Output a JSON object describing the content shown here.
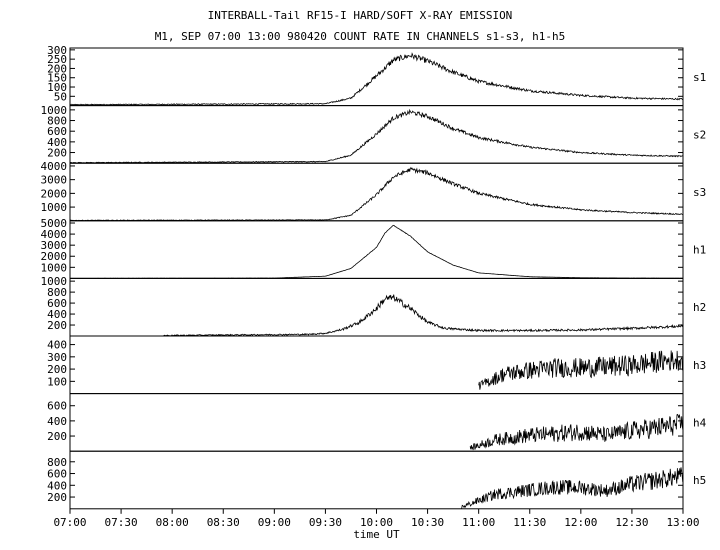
{
  "header": {
    "title": "INTERBALL-Tail RF15-I HARD/SOFT X-RAY EMISSION",
    "subtitle": "M1, SEP 07:00 13:00 980420  COUNT RATE IN CHANNELS s1-s3, h1-h5"
  },
  "chart_data": {
    "type": "line",
    "title": "INTERBALL-Tail RF15-I HARD/SOFT X-RAY EMISSION",
    "xlabel": "time UT",
    "x_range": [
      "07:00",
      "13:00"
    ],
    "x_tick_labels": [
      "07:00",
      "07:30",
      "08:00",
      "08:30",
      "09:00",
      "09:30",
      "10:00",
      "10:30",
      "11:00",
      "11:30",
      "12:00",
      "12:30",
      "13:00"
    ],
    "grid": false,
    "panels": [
      {
        "name": "s1",
        "ylim": [
          0,
          310
        ],
        "y_ticks": [
          50,
          100,
          150,
          200,
          250,
          300
        ],
        "y_tick_labels": [
          "50",
          "100",
          "150",
          "200",
          "250",
          "300"
        ],
        "segments": [
          {
            "x": [
              "07:00",
              "09:30",
              "09:45",
              "10:00",
              "10:10",
              "10:20",
              "10:30",
              "10:45",
              "11:00",
              "11:30",
              "12:00",
              "12:30",
              "13:00"
            ],
            "y": [
              5,
              10,
              40,
              160,
              245,
              270,
              240,
              180,
              130,
              80,
              55,
              40,
              35
            ]
          }
        ],
        "noise": 15
      },
      {
        "name": "s2",
        "ylim": [
          0,
          1080
        ],
        "y_ticks": [
          200,
          400,
          600,
          800,
          1000
        ],
        "y_tick_labels": [
          "200",
          "400",
          "600",
          "800",
          "1000"
        ],
        "segments": [
          {
            "x": [
              "07:00",
              "09:30",
              "09:45",
              "10:00",
              "10:10",
              "10:20",
              "10:30",
              "10:45",
              "11:00",
              "11:30",
              "12:00",
              "12:30",
              "13:00"
            ],
            "y": [
              10,
              30,
              150,
              550,
              850,
              960,
              880,
              650,
              480,
              300,
              200,
              150,
              130
            ]
          }
        ],
        "noise": 40
      },
      {
        "name": "s3",
        "ylim": [
          0,
          4200
        ],
        "y_ticks": [
          1000,
          2000,
          3000,
          4000
        ],
        "y_tick_labels": [
          "1000",
          "2000",
          "3000",
          "4000"
        ],
        "segments": [
          {
            "x": [
              "07:00",
              "09:30",
              "09:45",
              "10:00",
              "10:10",
              "10:20",
              "10:30",
              "10:45",
              "11:00",
              "11:30",
              "12:00",
              "12:30",
              "13:00"
            ],
            "y": [
              30,
              60,
              400,
              1900,
              3200,
              3750,
              3500,
              2700,
              2000,
              1200,
              800,
              600,
              480
            ]
          }
        ],
        "noise": 150
      },
      {
        "name": "h1",
        "ylim": [
          0,
          5200
        ],
        "y_ticks": [
          1000,
          2000,
          3000,
          4000,
          5000
        ],
        "y_tick_labels": [
          "1000",
          "2000",
          "3000",
          "4000",
          "5000"
        ],
        "segments": [
          {
            "x": [
              "07:00",
              "09:00",
              "09:30",
              "09:45",
              "10:00",
              "10:05",
              "10:10",
              "10:20",
              "10:30",
              "10:45",
              "11:00",
              "11:30",
              "12:00",
              "12:30",
              "13:00"
            ],
            "y": [
              10,
              30,
              200,
              900,
              2800,
              4100,
              4800,
              3800,
              2400,
              1200,
              500,
              150,
              60,
              30,
              20
            ]
          }
        ],
        "noise": 30
      },
      {
        "name": "h2",
        "ylim": [
          0,
          1050
        ],
        "y_ticks": [
          200,
          400,
          600,
          800,
          1000
        ],
        "y_tick_labels": [
          "200",
          "400",
          "600",
          "800",
          "1000"
        ],
        "segments": [
          {
            "x": [
              "07:55",
              "09:20",
              "09:30",
              "09:40",
              "09:50",
              "10:00",
              "10:05",
              "10:10",
              "10:20",
              "10:30",
              "10:40",
              "11:00",
              "11:30",
              "12:00",
              "12:30",
              "13:00"
            ],
            "y": [
              10,
              30,
              50,
              120,
              250,
              500,
              680,
              700,
              500,
              250,
              140,
              100,
              100,
              110,
              140,
              180
            ]
          }
        ],
        "noise": 60
      },
      {
        "name": "h3",
        "ylim": [
          0,
          470
        ],
        "y_ticks": [
          100,
          200,
          300,
          400
        ],
        "y_tick_labels": [
          "100",
          "200",
          "300",
          "400"
        ],
        "segments": [
          {
            "x": [
              "07:00",
              "07:55"
            ],
            "y": [
              0,
              0
            ]
          },
          {
            "x": [
              "11:00",
              "11:15",
              "11:30",
              "11:45",
              "12:00",
              "12:15",
              "12:30",
              "12:45",
              "13:00"
            ],
            "y": [
              60,
              160,
              190,
              210,
              210,
              220,
              230,
              260,
              280
            ]
          }
        ],
        "noise": 90
      },
      {
        "name": "h4",
        "ylim": [
          0,
          760
        ],
        "y_ticks": [
          200,
          400,
          600
        ],
        "y_tick_labels": [
          "200",
          "400",
          "600"
        ],
        "segments": [
          {
            "x": [
              "10:55",
              "11:10",
              "11:30",
              "11:45",
              "12:00",
              "12:15",
              "12:30",
              "12:45",
              "13:00"
            ],
            "y": [
              40,
              150,
              210,
              230,
              260,
              210,
              270,
              310,
              360
            ]
          }
        ],
        "noise": 140
      },
      {
        "name": "h5",
        "ylim": [
          0,
          980
        ],
        "y_ticks": [
          200,
          400,
          600,
          800
        ],
        "y_tick_labels": [
          "200",
          "400",
          "600",
          "800"
        ],
        "segments": [
          {
            "x": [
              "10:50",
              "11:10",
              "11:30",
              "11:45",
              "12:00",
              "12:15",
              "12:30",
              "12:45",
              "13:00"
            ],
            "y": [
              30,
              250,
              320,
              370,
              360,
              310,
              420,
              490,
              560
            ]
          }
        ],
        "noise": 160
      }
    ]
  }
}
